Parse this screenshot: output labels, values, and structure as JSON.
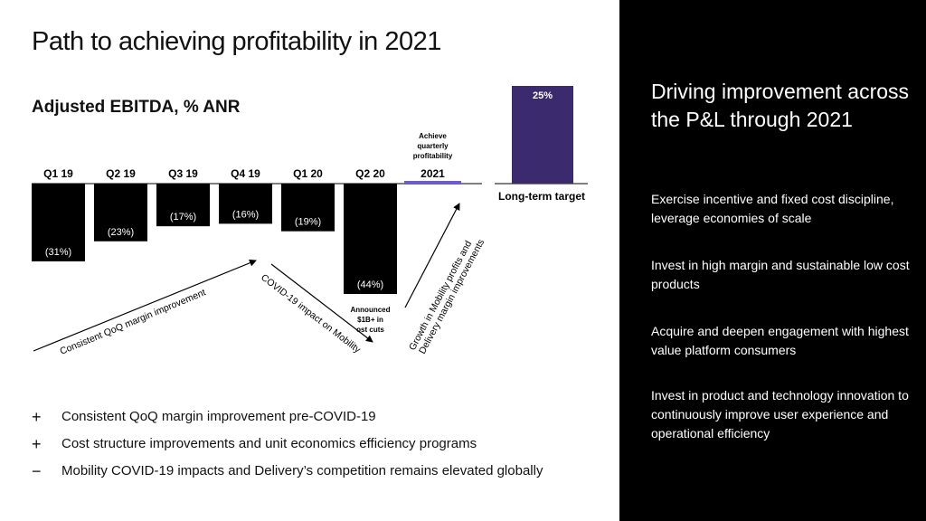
{
  "title": "Path to achieving profitability in 2021",
  "subtitle": "Adjusted EBITDA, % ANR",
  "chart_data": {
    "type": "bar",
    "categories": [
      "Q1 19",
      "Q2 19",
      "Q3 19",
      "Q4 19",
      "Q1 20",
      "Q2 20",
      "2021"
    ],
    "values": [
      -31,
      -23,
      -17,
      -16,
      -19,
      -44,
      0
    ],
    "labels": [
      "(31%)",
      "(23%)",
      "(17%)",
      "(16%)",
      "(19%)",
      "(44%)",
      ""
    ],
    "target": {
      "label": "Long-term target",
      "value": 25,
      "value_label": "25%"
    },
    "annotations": {
      "achieve": "Achieve quarterly profitability",
      "cost_cuts": "Announced $1B+ in cost cuts",
      "arrow_improvement": "Consistent QoQ margin improvement",
      "arrow_covid": "COVID-19 impact on Mobility",
      "arrow_growth_1": "Growth in Mobility profits and",
      "arrow_growth_2": "Delivery margin improvements"
    },
    "colors": {
      "bars": "#000000",
      "highlight": "#6b5cc8",
      "target": "#3b2a6e"
    }
  },
  "bullets": [
    {
      "sym": "+",
      "text": "Consistent QoQ margin improvement pre-COVID-19"
    },
    {
      "sym": "+",
      "text": "Cost structure improvements and unit economics efficiency programs"
    },
    {
      "sym": "−",
      "text": "Mobility COVID-19 impacts and Delivery’s competition remains elevated globally"
    }
  ],
  "right_panel": {
    "title": "Driving improvement across the P&L through 2021",
    "items": [
      "Exercise incentive and fixed cost discipline, leverage economies of scale",
      "Invest in high margin and sustainable low cost products",
      "Acquire and deepen engagement with highest value platform consumers",
      "Invest in product and technology innovation to continuously improve user experience and operational efficiency"
    ]
  }
}
